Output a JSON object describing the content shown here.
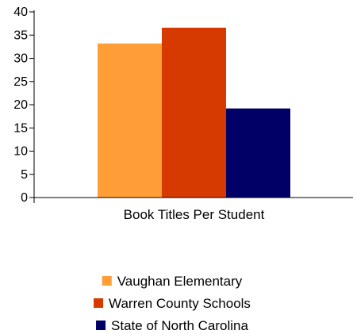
{
  "chart_data": {
    "type": "bar",
    "title": "",
    "xlabel": "",
    "ylabel": "",
    "categories": [
      "Book Titles Per Student"
    ],
    "series": [
      {
        "name": "Vaughan Elementary",
        "values": [
          33.2
        ],
        "color": "#FF9E36"
      },
      {
        "name": "Warren County Schools",
        "values": [
          36.6
        ],
        "color": "#D63A00"
      },
      {
        "name": "State of North Carolina",
        "values": [
          19.2
        ],
        "color": "#000066"
      }
    ],
    "ylim": [
      0,
      40
    ],
    "y_ticks": [
      0,
      5,
      10,
      15,
      20,
      25,
      30,
      35,
      40
    ],
    "grid": false,
    "legend_position": "bottom"
  }
}
